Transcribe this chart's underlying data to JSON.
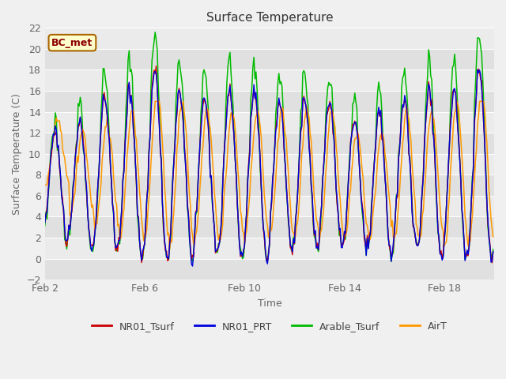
{
  "title": "Surface Temperature",
  "ylabel": "Surface Temperature (C)",
  "xlabel": "Time",
  "ylim": [
    -2,
    22
  ],
  "yticks": [
    -2,
    0,
    2,
    4,
    6,
    8,
    10,
    12,
    14,
    16,
    18,
    20,
    22
  ],
  "xtick_labels": [
    "Feb 2",
    "Feb 6",
    "Feb 10",
    "Feb 14",
    "Feb 18"
  ],
  "xtick_positions": [
    0,
    4,
    8,
    12,
    16
  ],
  "line_colors": {
    "NR01_Tsurf": "#cc0000",
    "NR01_PRT": "#0000dd",
    "Arable_Tsurf": "#00bb00",
    "AirT": "#ff9900"
  },
  "fig_bg": "#f0f0f0",
  "plot_bg": "#e8e8e8",
  "band_colors": [
    "#e0e0e0",
    "#ebebeb"
  ],
  "annotation_text": "BC_met",
  "annotation_color": "#8b0000",
  "annotation_bg": "#ffffcc",
  "annotation_border": "#aa6600",
  "title_color": "#333333",
  "tick_color": "#666666",
  "grid_color": "#ffffff",
  "legend_color": "#444444"
}
